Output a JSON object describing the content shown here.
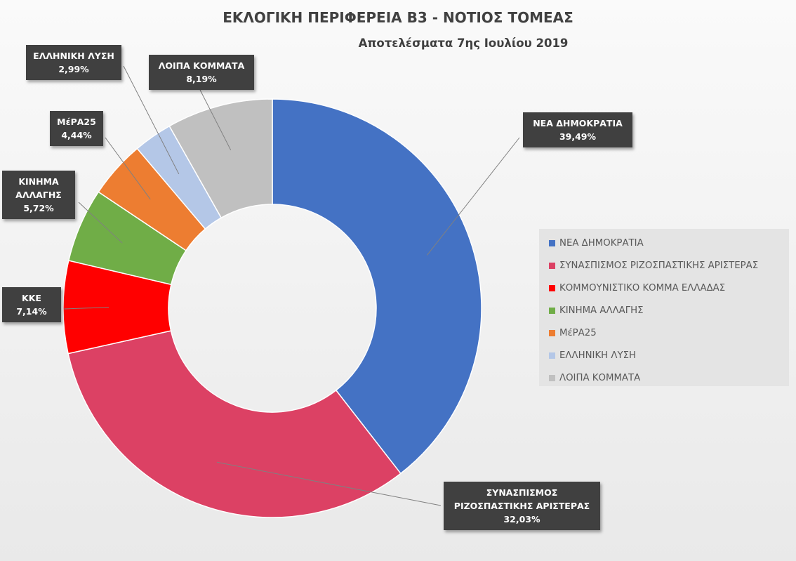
{
  "chart_data": {
    "type": "pie",
    "variant": "doughnut",
    "title": "ΕΚΛΟΓΙΚΗ ΠΕΡΙΦΕΡΕΙΑ Β3 - ΝΟΤΙΟΣ ΤΟΜΕΑΣ",
    "subtitle": "Αποτελέσματα 7ης Ιουλίου 2019",
    "legend_position": "right",
    "slices": [
      {
        "name": "ΝΕΑ ΔΗΜΟΚΡΑΤΙΑ",
        "value": 39.49,
        "display": "39,49%",
        "label_lines": [
          "ΝΕΑ ΔΗΜΟΚΡΑΤΙΑ"
        ],
        "color": "#4472c4"
      },
      {
        "name": "ΣΥΝΑΣΠΙΣΜΟΣ ΡΙΖΟΣΠΑΣΤΙΚΗΣ ΑΡΙΣΤΕΡΑΣ",
        "value": 32.03,
        "display": "32,03%",
        "label_lines": [
          "ΣΥΝΑΣΠΙΣΜΟΣ",
          "ΡΙΖΟΣΠΑΣΤΙΚΗΣ ΑΡΙΣΤΕΡΑΣ"
        ],
        "color": "#dc4164"
      },
      {
        "name": "ΚΟΜΜΟΥΝΙΣΤΙΚΟ ΚΟΜΜΑ ΕΛΛΑΔΑΣ",
        "value": 7.14,
        "display": "7,14%",
        "label_lines": [
          "ΚΚΕ"
        ],
        "color": "#ff0000"
      },
      {
        "name": "ΚΙΝΗΜΑ ΑΛΛΑΓΗΣ",
        "value": 5.72,
        "display": "5,72%",
        "label_lines": [
          "ΚΙΝΗΜΑ",
          "ΑΛΛΑΓΗΣ"
        ],
        "color": "#70ad47"
      },
      {
        "name": "ΜέΡΑ25",
        "value": 4.44,
        "display": "4,44%",
        "label_lines": [
          "ΜέΡΑ25"
        ],
        "color": "#ed7d31"
      },
      {
        "name": "ΕΛΛΗΝΙΚΗ ΛΥΣΗ",
        "value": 2.99,
        "display": "2,99%",
        "label_lines": [
          "ΕΛΛΗΝΙΚΗ ΛΥΣΗ"
        ],
        "color": "#b4c7e7"
      },
      {
        "name": "ΛΟΙΠΑ ΚΟΜΜΑΤΑ",
        "value": 8.19,
        "display": "8,19%",
        "label_lines": [
          "ΛΟΙΠΑ ΚΟΜΜΑΤΑ"
        ],
        "color": "#c0c0c0"
      }
    ]
  }
}
